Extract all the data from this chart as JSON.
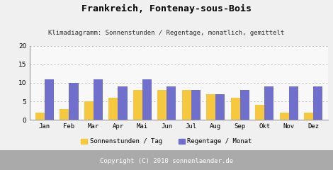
{
  "title": "Frankreich, Fontenay-sous-Bois",
  "subtitle": "Klimadiagramm: Sonnenstunden / Regentage, monatlich, gemittelt",
  "months": [
    "Jan",
    "Feb",
    "Mar",
    "Apr",
    "Mai",
    "Jun",
    "Jul",
    "Aug",
    "Sep",
    "Okt",
    "Nov",
    "Dez"
  ],
  "sonnenstunden": [
    2,
    3,
    5,
    6,
    8,
    8,
    8,
    7,
    6,
    4,
    2,
    2
  ],
  "regentage": [
    11,
    10,
    11,
    9,
    11,
    9,
    8,
    7,
    8,
    9,
    9,
    9
  ],
  "bar_color_sun": "#F5C840",
  "bar_color_rain": "#7070CC",
  "background_color": "#F0F0F0",
  "plot_bg_color": "#F8F8F8",
  "copyright_bg": "#AAAAAA",
  "ylim": [
    0,
    20
  ],
  "yticks": [
    0,
    5,
    10,
    15,
    20
  ],
  "legend_sun": "Sonnenstunden / Tag",
  "legend_rain": "Regentage / Monat",
  "copyright": "Copyright (C) 2010 sonnenlaender.de",
  "title_fontsize": 9.5,
  "subtitle_fontsize": 6.5,
  "axis_fontsize": 6.5,
  "legend_fontsize": 6.5,
  "copyright_fontsize": 6.5,
  "bar_width": 0.38
}
